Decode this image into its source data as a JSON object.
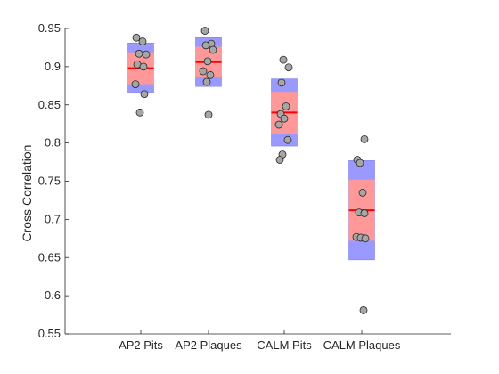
{
  "chart_data": {
    "type": "scatter",
    "subtype": "box-and-jitter",
    "title": "",
    "xlabel": "",
    "ylabel": "Cross Correlation",
    "ylim": [
      0.55,
      0.95
    ],
    "yticks": [
      0.55,
      0.6,
      0.65,
      0.7,
      0.75,
      0.8,
      0.85,
      0.9,
      0.95
    ],
    "ytick_labels": [
      "0.55",
      "0.6",
      "0.65",
      "0.7",
      "0.75",
      "0.8",
      "0.85",
      "0.9",
      "0.95"
    ],
    "categories": [
      "AP2 Pits",
      "AP2 Plaques",
      "CALM Pits",
      "CALM Plaques"
    ],
    "groups": [
      {
        "category": "AP2 Pits",
        "mean": 0.898,
        "inner_band": [
          0.877,
          0.919
        ],
        "outer_band": [
          0.866,
          0.931
        ],
        "points": [
          0.938,
          0.933,
          0.917,
          0.916,
          0.903,
          0.9,
          0.877,
          0.864,
          0.84
        ]
      },
      {
        "category": "AP2 Plaques",
        "mean": 0.906,
        "inner_band": [
          0.886,
          0.926
        ],
        "outer_band": [
          0.874,
          0.938
        ],
        "points": [
          0.947,
          0.93,
          0.928,
          0.922,
          0.907,
          0.894,
          0.889,
          0.88,
          0.837
        ]
      },
      {
        "category": "CALM Pits",
        "mean": 0.84,
        "inner_band": [
          0.812,
          0.867
        ],
        "outer_band": [
          0.796,
          0.884
        ],
        "points": [
          0.909,
          0.899,
          0.879,
          0.848,
          0.838,
          0.832,
          0.824,
          0.804,
          0.785,
          0.778
        ]
      },
      {
        "category": "CALM Plaques",
        "mean": 0.712,
        "inner_band": [
          0.672,
          0.752
        ],
        "outer_band": [
          0.647,
          0.777
        ],
        "points": [
          0.805,
          0.778,
          0.774,
          0.735,
          0.709,
          0.708,
          0.677,
          0.676,
          0.675,
          0.581
        ]
      }
    ],
    "colors": {
      "mean_line": "#ff0000",
      "inner_band": "#ff9999",
      "outer_band": "#9999ff",
      "point_fill": "#a6a6a6",
      "point_edge": "#262626",
      "axis": "#262626"
    },
    "grid": false,
    "legend": "none"
  }
}
